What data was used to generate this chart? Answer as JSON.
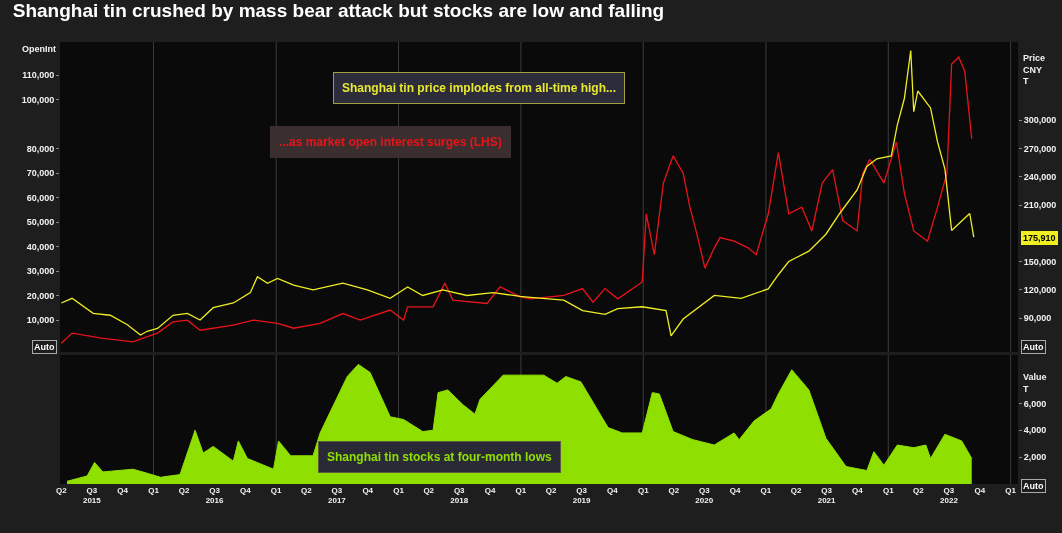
{
  "chart_data": [
    {
      "type": "line",
      "title": "Shanghai tin crushed by mass bear attack but stocks are low and falling",
      "ylabel": "OpenInt",
      "y2label": "Price\nCNY\nT",
      "annotations": [
        "Shanghai tin price implodes from all-time high...",
        "...as market open interest surges (LHS)",
        "Auto",
        "Auto",
        "175,910"
      ],
      "series": [
        {
          "type": "line",
          "axis": "y",
          "color": "#e8141a",
          "x": [
            "2015-04-01",
            "2015-05-03",
            "2015-07-30",
            "2015-11-01",
            "2015-12-01",
            "2016-01-13",
            "2016-02-28",
            "2016-04-11",
            "2016-05-19",
            "2016-08-26",
            "2016-10-25",
            "2017-01-05",
            "2017-02-22",
            "2017-05-12",
            "2017-07-19",
            "2017-09-09",
            "2017-12-07",
            "2018-01-16",
            "2018-01-28",
            "2018-04-14",
            "2018-05-19",
            "2018-06-12",
            "2018-09-22",
            "2018-10-31",
            "2018-12-30",
            "2019-01-30",
            "2019-05-09",
            "2019-07-04",
            "2019-08-04",
            "2019-09-09",
            "2019-10-17",
            "2019-12-29",
            "2020-01-10",
            "2020-02-03",
            "2020-03-01",
            "2020-03-30",
            "2020-04-29",
            "2020-05-19",
            "2020-06-09",
            "2020-07-03",
            "2020-07-31",
            "2020-08-17",
            "2020-09-28",
            "2020-11-09",
            "2020-12-03",
            "2021-01-08",
            "2021-02-07",
            "2021-03-10",
            "2021-04-18",
            "2021-05-18",
            "2021-06-18",
            "2021-07-19",
            "2021-08-18",
            "2021-09-30",
            "2021-10-17",
            "2021-11-07",
            "2021-12-19",
            "2022-01-25",
            "2022-02-18",
            "2022-03-18",
            "2022-04-28",
            "2022-05-28",
            "2022-06-25",
            "2022-07-09",
            "2022-07-30",
            "2022-08-17",
            "2022-09-07"
          ],
          "values": [
            600,
            4700,
            2700,
            1100,
            2700,
            4700,
            9300,
            10000,
            5900,
            8000,
            10000,
            8700,
            6700,
            8700,
            12700,
            10000,
            14100,
            10000,
            15400,
            15400,
            25100,
            18200,
            16800,
            23600,
            19500,
            18700,
            20100,
            22900,
            17300,
            22900,
            18700,
            25600,
            53400,
            36700,
            65900,
            77000,
            70000,
            56100,
            45100,
            31200,
            39500,
            43700,
            42200,
            39500,
            36700,
            53400,
            78400,
            53400,
            56100,
            46400,
            65900,
            71400,
            50600,
            46400,
            70000,
            75600,
            65900,
            82700,
            61800,
            46400,
            42200,
            56100,
            70000,
            114500,
            117300,
            111700,
            84000
          ]
        },
        {
          "type": "line",
          "axis": "y2",
          "color": "#eeee22",
          "x": [
            "2015-04-01",
            "2015-05-03",
            "2015-07-05",
            "2015-08-25",
            "2015-10-15",
            "2015-11-23",
            "2015-12-13",
            "2016-01-13",
            "2016-02-28",
            "2016-04-11",
            "2016-05-19",
            "2016-06-27",
            "2016-08-26",
            "2016-10-16",
            "2016-11-06",
            "2016-12-06",
            "2017-01-05",
            "2017-02-22",
            "2017-04-21",
            "2017-07-19",
            "2017-09-30",
            "2017-12-07",
            "2018-01-28",
            "2018-03-14",
            "2018-05-13",
            "2018-07-24",
            "2018-10-10",
            "2018-12-30",
            "2019-01-30",
            "2019-05-09",
            "2019-07-04",
            "2019-09-09",
            "2019-10-17",
            "2019-12-29",
            "2020-03-09",
            "2020-03-24",
            "2020-04-29",
            "2020-07-31",
            "2020-10-19",
            "2021-01-08",
            "2021-02-07",
            "2021-03-10",
            "2021-05-09",
            "2021-06-29",
            "2021-08-09",
            "2021-09-30",
            "2021-10-29",
            "2021-11-28",
            "2022-01-10",
            "2022-01-28",
            "2022-02-18",
            "2022-03-09",
            "2022-03-18",
            "2022-03-30",
            "2022-05-07",
            "2022-05-28",
            "2022-06-19",
            "2022-07-09",
            "2022-08-08",
            "2022-09-01",
            "2022-09-13"
          ],
          "values": [
            106000,
            111000,
            95000,
            93000,
            83000,
            72000,
            76000,
            79000,
            93000,
            95000,
            88000,
            101000,
            106000,
            117000,
            134000,
            127000,
            132000,
            125000,
            120000,
            127000,
            120000,
            111000,
            123000,
            114000,
            120000,
            114000,
            117000,
            113000,
            112000,
            109000,
            98000,
            94000,
            100000,
            102000,
            98000,
            71000,
            89000,
            114000,
            111000,
            121000,
            136000,
            150000,
            161000,
            179000,
            201000,
            226000,
            251000,
            259000,
            262000,
            295000,
            323000,
            374000,
            309000,
            331000,
            313000,
            277000,
            248000,
            183000,
            193000,
            201000,
            175910
          ]
        }
      ],
      "xlim": [
        "2015-03-28",
        "2023-01-23"
      ],
      "tick_labels": "y",
      "ylim": [
        -3000,
        123500
      ],
      "yticks": [
        {
          "value": 10000,
          "label": "10,000"
        },
        {
          "value": 20000,
          "label": "20,000"
        },
        {
          "value": 30000,
          "label": "30,000"
        },
        {
          "value": 40000,
          "label": "40,000"
        },
        {
          "value": 50000,
          "label": "50,000"
        },
        {
          "value": 60000,
          "label": "60,000"
        },
        {
          "value": 70000,
          "label": "70,000"
        },
        {
          "value": 80000,
          "label": "80,000"
        },
        {
          "value": 100000,
          "label": "100,000"
        },
        {
          "value": 110000,
          "label": "110,000"
        }
      ],
      "y2lim": [
        54000,
        383000
      ],
      "y2ticks": [
        {
          "value": 90000,
          "label": "90,000"
        },
        {
          "value": 120000,
          "label": "120,000"
        },
        {
          "value": 150000,
          "label": "150,000"
        },
        {
          "value": 210000,
          "label": "210,000"
        },
        {
          "value": 240000,
          "label": "240,000"
        },
        {
          "value": 270000,
          "label": "270,000"
        },
        {
          "value": 300000,
          "label": "300,000"
        }
      ],
      "ref_lines": [
        {
          "axis": "x",
          "value": "2016-01-01",
          "color": "#3c3c3c"
        },
        {
          "axis": "x",
          "value": "2017-01-01",
          "color": "#3c3c3c"
        },
        {
          "axis": "x",
          "value": "2018-01-01",
          "color": "#3c3c3c"
        },
        {
          "axis": "x",
          "value": "2019-01-01",
          "color": "#3c3c3c"
        },
        {
          "axis": "x",
          "value": "2020-01-01",
          "color": "#3c3c3c"
        },
        {
          "axis": "x",
          "value": "2021-01-01",
          "color": "#3c3c3c"
        },
        {
          "axis": "x",
          "value": "2022-01-01",
          "color": "#3c3c3c"
        },
        {
          "axis": "x",
          "value": "2023-01-01",
          "color": "#3c3c3c"
        }
      ]
    },
    {
      "type": "area",
      "ylabel": "Value\nT",
      "annotations": [
        "Shanghai tin stocks at four-month lows",
        "Auto"
      ],
      "series": [
        {
          "color": "#8fe000",
          "x": [
            "2015-04-18",
            "2015-06-17",
            "2015-07-09",
            "2015-08-03",
            "2015-11-01",
            "2015-12-13",
            "2016-01-22",
            "2016-03-20",
            "2016-05-04",
            "2016-05-28",
            "2016-06-27",
            "2016-08-26",
            "2016-09-10",
            "2016-10-07",
            "2016-12-24",
            "2017-01-08",
            "2017-02-13",
            "2017-04-21",
            "2017-05-12",
            "2017-08-01",
            "2017-09-03",
            "2017-10-08",
            "2017-12-07",
            "2018-01-16",
            "2018-03-14",
            "2018-04-14",
            "2018-04-29",
            "2018-05-28",
            "2018-07-12",
            "2018-08-17",
            "2018-09-01",
            "2018-11-09",
            "2019-03-10",
            "2019-04-19",
            "2019-05-15",
            "2019-06-29",
            "2019-09-18",
            "2019-10-30",
            "2019-12-29",
            "2020-01-28",
            "2020-02-18",
            "2020-03-30",
            "2020-05-28",
            "2020-07-31",
            "2020-09-28",
            "2020-10-13",
            "2020-11-27",
            "2021-01-17",
            "2021-02-07",
            "2021-03-19",
            "2021-05-09",
            "2021-06-29",
            "2021-08-28",
            "2021-10-29",
            "2021-11-19",
            "2021-12-19",
            "2022-01-28",
            "2022-03-18",
            "2022-04-23",
            "2022-05-07",
            "2022-06-19",
            "2022-08-08",
            "2022-09-07"
          ],
          "values": [
            200,
            600,
            1600,
            900,
            1100,
            800,
            500,
            700,
            4000,
            2300,
            2800,
            1700,
            3200,
            1900,
            1100,
            3200,
            2100,
            2100,
            3800,
            8000,
            8900,
            8300,
            5000,
            4800,
            3900,
            4000,
            6800,
            7000,
            5900,
            5200,
            6300,
            8100,
            8100,
            7500,
            8000,
            7600,
            4200,
            3800,
            3800,
            6800,
            6700,
            3900,
            3300,
            2900,
            3800,
            3300,
            4700,
            5600,
            6700,
            8500,
            7000,
            3400,
            1300,
            1000,
            2400,
            1400,
            2900,
            2700,
            2900,
            1900,
            3700,
            3200,
            1900
          ]
        }
      ],
      "xlim": [
        "2015-03-28",
        "2023-01-23"
      ],
      "xticks": [
        {
          "value": "2015-04-01",
          "label": "Q2"
        },
        {
          "value": "2015-07-01",
          "label": "Q3\n2015"
        },
        {
          "value": "2015-10-01",
          "label": "Q4"
        },
        {
          "value": "2016-01-01",
          "label": "Q1"
        },
        {
          "value": "2016-04-01",
          "label": "Q2"
        },
        {
          "value": "2016-07-01",
          "label": "Q3\n2016"
        },
        {
          "value": "2016-10-01",
          "label": "Q4"
        },
        {
          "value": "2017-01-01",
          "label": "Q1"
        },
        {
          "value": "2017-04-01",
          "label": "Q2"
        },
        {
          "value": "2017-07-01",
          "label": "Q3\n2017"
        },
        {
          "value": "2017-10-01",
          "label": "Q4"
        },
        {
          "value": "2018-01-01",
          "label": "Q1"
        },
        {
          "value": "2018-04-01",
          "label": "Q2"
        },
        {
          "value": "2018-07-01",
          "label": "Q3\n2018"
        },
        {
          "value": "2018-10-01",
          "label": "Q4"
        },
        {
          "value": "2019-01-01",
          "label": "Q1"
        },
        {
          "value": "2019-04-01",
          "label": "Q2"
        },
        {
          "value": "2019-07-01",
          "label": "Q3\n2019"
        },
        {
          "value": "2019-10-01",
          "label": "Q4"
        },
        {
          "value": "2020-01-01",
          "label": "Q1"
        },
        {
          "value": "2020-04-01",
          "label": "Q2"
        },
        {
          "value": "2020-07-01",
          "label": "Q3\n2020"
        },
        {
          "value": "2020-10-01",
          "label": "Q4"
        },
        {
          "value": "2021-01-01",
          "label": "Q1"
        },
        {
          "value": "2021-04-01",
          "label": "Q2"
        },
        {
          "value": "2021-07-01",
          "label": "Q3\n2021"
        },
        {
          "value": "2021-10-01",
          "label": "Q4"
        },
        {
          "value": "2022-01-01",
          "label": "Q1"
        },
        {
          "value": "2022-04-01",
          "label": "Q2"
        },
        {
          "value": "2022-07-01",
          "label": "Q3\n2022"
        },
        {
          "value": "2022-10-01",
          "label": "Q4"
        },
        {
          "value": "2023-01-01",
          "label": "Q1"
        }
      ],
      "ylim": [
        0,
        9600
      ],
      "yticks": [
        {
          "value": 2000,
          "label": "2,000"
        },
        {
          "value": 4000,
          "label": "4,000"
        },
        {
          "value": 6000,
          "label": "6,000"
        }
      ],
      "ref_lines": [
        {
          "axis": "x",
          "value": "2016-01-01",
          "color": "#3c3c3c"
        },
        {
          "axis": "x",
          "value": "2017-01-01",
          "color": "#3c3c3c"
        },
        {
          "axis": "x",
          "value": "2018-01-01",
          "color": "#3c3c3c"
        },
        {
          "axis": "x",
          "value": "2019-01-01",
          "color": "#3c3c3c"
        },
        {
          "axis": "x",
          "value": "2020-01-01",
          "color": "#3c3c3c"
        },
        {
          "axis": "x",
          "value": "2021-01-01",
          "color": "#3c3c3c"
        },
        {
          "axis": "x",
          "value": "2022-01-01",
          "color": "#3c3c3c"
        },
        {
          "axis": "x",
          "value": "2023-01-01",
          "color": "#3c3c3c"
        }
      ]
    }
  ]
}
